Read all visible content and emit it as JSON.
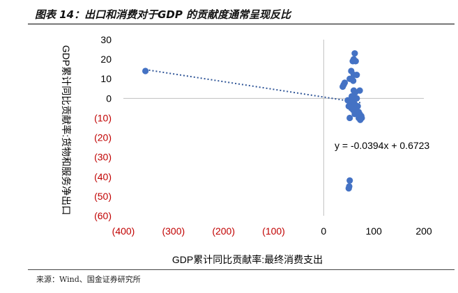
{
  "header": {
    "title": "图表 14：出口和消费对于GDP 的贡献度通常呈现反比"
  },
  "footer": {
    "source": "来源：Wind、国金证券研究所"
  },
  "colors": {
    "point": "#4472C4",
    "trend": "#2F5597",
    "negative_tick": "#C00000",
    "axis": "#BFBFBF"
  },
  "chart_data": {
    "type": "scatter",
    "title": "图表 14：出口和消费对于GDP 的贡献度通常呈现反比",
    "xlabel": "GDP累计同比贡献率:最终消费支出",
    "ylabel": "GDP累计同比贡献率:货物和服务净出口",
    "xlim": [
      -400,
      200
    ],
    "ylim": [
      -60,
      30
    ],
    "x_ticks": [
      -400,
      -300,
      -200,
      -100,
      0,
      100,
      200
    ],
    "y_ticks": [
      30,
      20,
      10,
      0,
      -10,
      -20,
      -30,
      -40,
      -50,
      -60
    ],
    "x_tick_labels": [
      "(400)",
      "(300)",
      "(200)",
      "(100)",
      "0",
      "100",
      "200"
    ],
    "y_tick_labels": [
      "30",
      "20",
      "10",
      "0",
      "(10)",
      "(20)",
      "(30)",
      "(40)",
      "(50)",
      "(60)"
    ],
    "trendline": {
      "type": "linear",
      "equation": "y = -0.0394x + 0.6723",
      "slope": -0.0394,
      "intercept": 0.6723
    },
    "points": [
      {
        "x": -356,
        "y": 14
      },
      {
        "x": 62,
        "y": 23
      },
      {
        "x": 60,
        "y": 20
      },
      {
        "x": 58,
        "y": 19
      },
      {
        "x": 64,
        "y": 19
      },
      {
        "x": 55,
        "y": 14
      },
      {
        "x": 60,
        "y": 12
      },
      {
        "x": 66,
        "y": 12
      },
      {
        "x": 52,
        "y": 10
      },
      {
        "x": 59,
        "y": 9
      },
      {
        "x": 40,
        "y": 7
      },
      {
        "x": 38,
        "y": 6
      },
      {
        "x": 42,
        "y": 8
      },
      {
        "x": 72,
        "y": 4
      },
      {
        "x": 60,
        "y": 4
      },
      {
        "x": 63,
        "y": 3
      },
      {
        "x": 56,
        "y": 1
      },
      {
        "x": 60,
        "y": 0
      },
      {
        "x": 66,
        "y": 0
      },
      {
        "x": 48,
        "y": -1
      },
      {
        "x": 53,
        "y": -2
      },
      {
        "x": 57,
        "y": -3
      },
      {
        "x": 62,
        "y": -3
      },
      {
        "x": 68,
        "y": -4
      },
      {
        "x": 50,
        "y": -4
      },
      {
        "x": 55,
        "y": -5
      },
      {
        "x": 59,
        "y": -6
      },
      {
        "x": 64,
        "y": -6
      },
      {
        "x": 70,
        "y": -7
      },
      {
        "x": 62,
        "y": -8
      },
      {
        "x": 67,
        "y": -8
      },
      {
        "x": 72,
        "y": -8
      },
      {
        "x": 75,
        "y": -9
      },
      {
        "x": 70,
        "y": -10
      },
      {
        "x": 76,
        "y": -10
      },
      {
        "x": 52,
        "y": -10
      },
      {
        "x": 73,
        "y": -11
      },
      {
        "x": 52,
        "y": -42
      },
      {
        "x": 51,
        "y": -45
      },
      {
        "x": 50,
        "y": -46
      }
    ]
  }
}
